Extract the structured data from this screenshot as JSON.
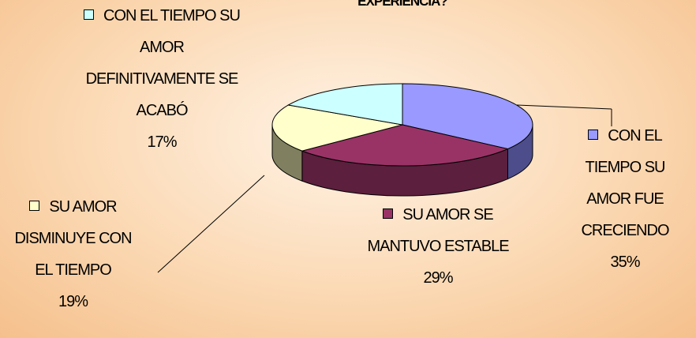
{
  "chart_data": {
    "type": "pie3d",
    "title": "EXPERIENCIA?",
    "categories": [
      "CON EL TIEMPO SU AMOR FUE CRECIENDO",
      "SU AMOR SE MANTUVO ESTABLE",
      "SU AMOR DISMINUYE CON EL TIEMPO",
      "CON EL TIEMPO SU AMOR DEFINITIVAMENTE SE ACABÓ"
    ],
    "values": [
      35,
      29,
      19,
      17
    ],
    "value_labels": [
      "35%",
      "29%",
      "19%",
      "17%"
    ],
    "colors": [
      "#9999ff",
      "#993366",
      "#ffffcc",
      "#ccffff"
    ],
    "side_colors": [
      "#4d4d8c",
      "#5c1f3d",
      "#808060",
      "#7a9999"
    ]
  }
}
